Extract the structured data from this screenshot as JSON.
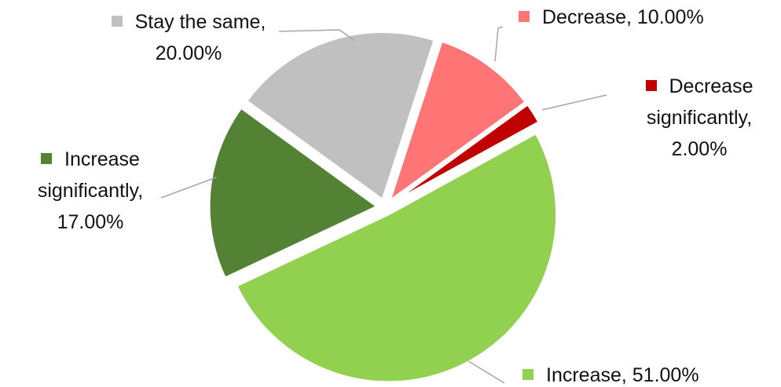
{
  "chart_data": {
    "type": "pie",
    "values": [
      10,
      2,
      51,
      17,
      20
    ],
    "value_labels": [
      "Decrease, 10.00%",
      "Decrease significantly, 2.00%",
      "Increase, 51.00%",
      "Increase significantly, 17.00%",
      "Stay the same, 20.00%"
    ],
    "colors": [
      "#ff7575",
      "#c00000",
      "#92d050",
      "#548235",
      "#c0c0c0"
    ]
  }
}
